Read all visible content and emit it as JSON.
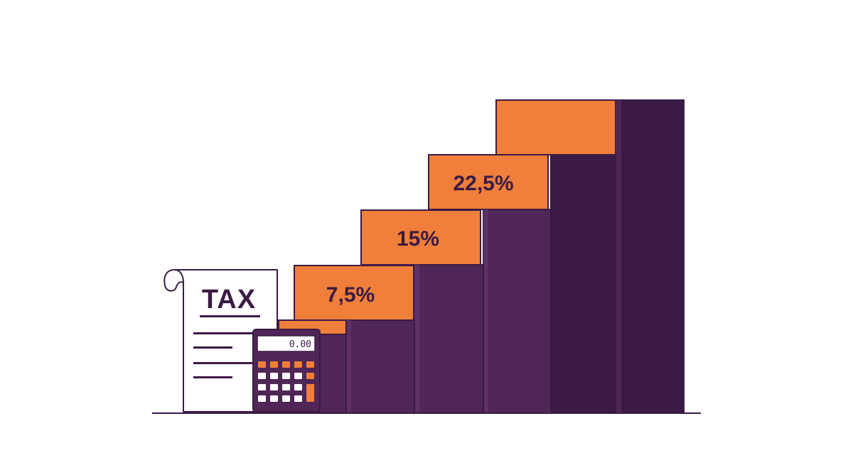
{
  "illustration": {
    "document": {
      "title": "TAX"
    },
    "calculator": {
      "display": "0.00"
    },
    "steps": [
      {
        "label": ""
      },
      {
        "label": "7,5%"
      },
      {
        "label": "15%"
      },
      {
        "label": "22,5%"
      },
      {
        "label": ""
      }
    ]
  },
  "colors": {
    "orange": "#ef7f3a",
    "purple": "#4f2656",
    "purple_dark": "#3b1a45",
    "outline": "#3b1a45",
    "background": "#ffffff"
  }
}
